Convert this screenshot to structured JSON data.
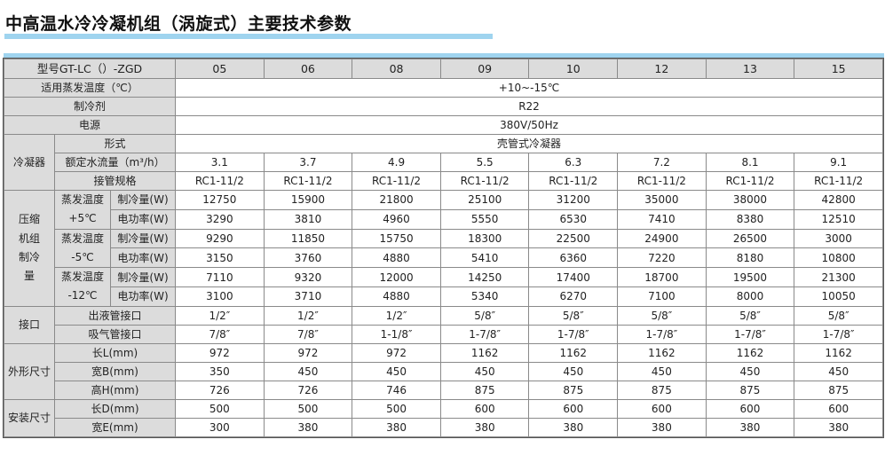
{
  "title": "中高温水冷冷凝机组（涡旋式）主要技术参数",
  "colors": {
    "accent_bar": "#9fd4ef",
    "label_bg": "#dcdcdc",
    "border": "#8a8a8a"
  },
  "table": {
    "model_label": "型号GT-LC（）-ZGD",
    "models": [
      "05",
      "06",
      "08",
      "09",
      "10",
      "12",
      "13",
      "15"
    ],
    "general": [
      {
        "label": "适用蒸发温度（℃）",
        "value": "+10~-15℃"
      },
      {
        "label": "制冷剂",
        "value": "R22"
      },
      {
        "label": "电源",
        "value": "380V/50Hz"
      }
    ],
    "condenser": {
      "group": "冷凝器",
      "type_label": "形式",
      "type_value": "壳管式冷凝器",
      "rows": [
        {
          "label": "额定水流量（m³/h）",
          "values": [
            "3.1",
            "3.7",
            "4.9",
            "5.5",
            "6.3",
            "7.2",
            "8.1",
            "9.1"
          ]
        },
        {
          "label": "接管规格",
          "values": [
            "RC1-11/2",
            "RC1-11/2",
            "RC1-11/2",
            "RC1-11/2",
            "RC1-11/2",
            "RC1-11/2",
            "RC1-11/2",
            "RC1-11/2"
          ]
        }
      ]
    },
    "compressor": {
      "group_lines": [
        "压缩",
        "机组",
        "制冷",
        "量"
      ],
      "conditions": [
        {
          "lines": [
            "蒸发温度",
            "+5℃"
          ],
          "cooling_label": "制冷量(W)",
          "cooling": [
            "12750",
            "15900",
            "21800",
            "25100",
            "31200",
            "35000",
            "38000",
            "42800"
          ],
          "power_label": "电功率(W)",
          "power": [
            "3290",
            "3810",
            "4960",
            "5550",
            "6530",
            "7410",
            "8380",
            "12510"
          ]
        },
        {
          "lines": [
            "蒸发温度",
            "-5℃"
          ],
          "cooling_label": "制冷量(W)",
          "cooling": [
            "9290",
            "11850",
            "15750",
            "18300",
            "22500",
            "24900",
            "26500",
            "3000"
          ],
          "power_label": "电功率(W)",
          "power": [
            "3150",
            "3760",
            "4880",
            "5410",
            "6360",
            "7220",
            "8180",
            "10800"
          ]
        },
        {
          "lines": [
            "蒸发温度",
            "-12℃"
          ],
          "cooling_label": "制冷量(W)",
          "cooling": [
            "7110",
            "9320",
            "12000",
            "14250",
            "17400",
            "18700",
            "19500",
            "21300"
          ],
          "power_label": "电功率(W)",
          "power": [
            "3100",
            "3710",
            "4880",
            "5340",
            "6270",
            "7100",
            "8000",
            "10050"
          ]
        }
      ]
    },
    "groups": [
      {
        "group": "接口",
        "rows": [
          {
            "label": "出液管接口",
            "values": [
              "1/2″",
              "1/2″",
              "1/2″",
              "5/8″",
              "5/8″",
              "5/8″",
              "5/8″",
              "5/8″"
            ]
          },
          {
            "label": "吸气管接口",
            "values": [
              "7/8″",
              "7/8″",
              "1-1/8″",
              "1-7/8″",
              "1-7/8″",
              "1-7/8″",
              "1-7/8″",
              "1-7/8″"
            ]
          }
        ]
      },
      {
        "group": "外形尺寸",
        "rows": [
          {
            "label": "长L(mm)",
            "values": [
              "972",
              "972",
              "972",
              "1162",
              "1162",
              "1162",
              "1162",
              "1162"
            ]
          },
          {
            "label": "宽B(mm)",
            "values": [
              "350",
              "450",
              "450",
              "450",
              "450",
              "450",
              "450",
              "450"
            ]
          },
          {
            "label": "高H(mm)",
            "values": [
              "726",
              "726",
              "746",
              "875",
              "875",
              "875",
              "875",
              "875"
            ]
          }
        ]
      },
      {
        "group": "安装尺寸",
        "rows": [
          {
            "label": "长D(mm)",
            "values": [
              "500",
              "500",
              "500",
              "600",
              "600",
              "600",
              "600",
              "600"
            ]
          },
          {
            "label": "宽E(mm)",
            "values": [
              "300",
              "380",
              "380",
              "380",
              "380",
              "380",
              "380",
              "380"
            ]
          }
        ]
      }
    ]
  }
}
